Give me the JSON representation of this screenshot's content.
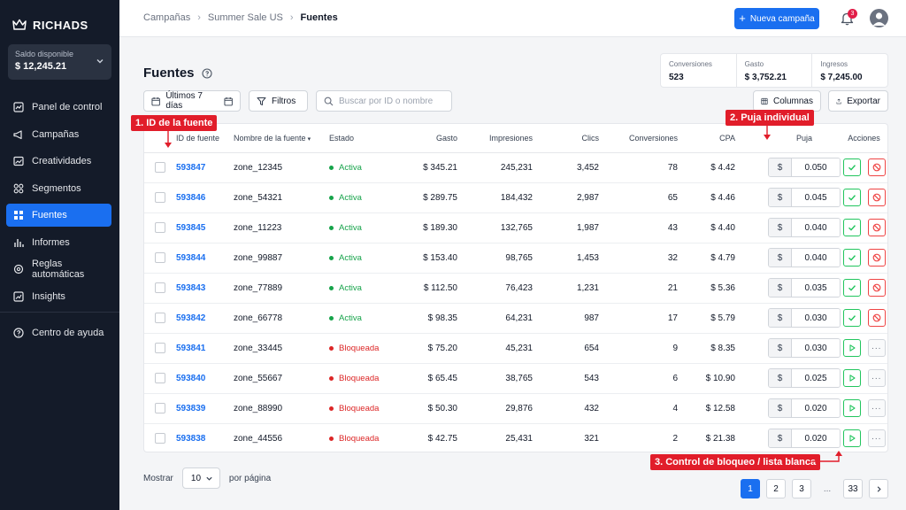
{
  "brand": {
    "name": "RICHADS"
  },
  "balance": {
    "label": "Saldo disponible",
    "value": "$ 12,245.21"
  },
  "sidebar": {
    "items": [
      {
        "label": "Panel de control",
        "icon": "dashboard-icon"
      },
      {
        "label": "Campañas",
        "icon": "megaphone-icon"
      },
      {
        "label": "Creatividades",
        "icon": "image-icon"
      },
      {
        "label": "Segmentos",
        "icon": "grid-icon"
      },
      {
        "label": "Fuentes",
        "icon": "sources-icon",
        "active": true
      },
      {
        "label": "Informes",
        "icon": "bar-chart-icon"
      },
      {
        "label": "Reglas automáticas",
        "icon": "gear-icon"
      },
      {
        "label": "Insights",
        "icon": "chart-up-icon"
      }
    ],
    "help": {
      "label": "Centro de ayuda",
      "icon": "help-circle-icon"
    }
  },
  "breadcrumb": {
    "items": [
      "Campañas",
      "Summer Sale US",
      "Fuentes"
    ]
  },
  "header": {
    "new_campaign": "Nueva campaña",
    "notifications_count": "3"
  },
  "page": {
    "title": "Fuentes"
  },
  "stats": [
    {
      "label": "Conversiones",
      "value": "523"
    },
    {
      "label": "Gasto",
      "value": "$ 3,752.21"
    },
    {
      "label": "Ingresos",
      "value": "$ 7,245.00"
    }
  ],
  "toolbar": {
    "date_range": "Últimos 7 días",
    "filters": "Filtros",
    "search_placeholder": "Buscar por ID o nombre",
    "columns": "Columnas",
    "export": "Exportar"
  },
  "table": {
    "headers": {
      "id": "ID de fuente",
      "name": "Nombre de la fuente",
      "state": "Estado",
      "spend": "Gasto",
      "impressions": "Impresiones",
      "clicks": "Clics",
      "conversions": "Conversiones",
      "cpa": "CPA",
      "bid": "Puja",
      "actions": "Acciones"
    },
    "currency": "$",
    "rows": [
      {
        "id": "593847",
        "name": "zone_12345",
        "state": "Activa",
        "spend": "$ 345.21",
        "impressions": "245,231",
        "clicks": "3,452",
        "conversions": "78",
        "cpa": "$ 4.42",
        "bid": "0.050"
      },
      {
        "id": "593846",
        "name": "zone_54321",
        "state": "Activa",
        "spend": "$ 289.75",
        "impressions": "184,432",
        "clicks": "2,987",
        "conversions": "65",
        "cpa": "$ 4.46",
        "bid": "0.045"
      },
      {
        "id": "593845",
        "name": "zone_11223",
        "state": "Activa",
        "spend": "$ 189.30",
        "impressions": "132,765",
        "clicks": "1,987",
        "conversions": "43",
        "cpa": "$ 4.40",
        "bid": "0.040"
      },
      {
        "id": "593844",
        "name": "zone_99887",
        "state": "Activa",
        "spend": "$ 153.40",
        "impressions": "98,765",
        "clicks": "1,453",
        "conversions": "32",
        "cpa": "$ 4.79",
        "bid": "0.040"
      },
      {
        "id": "593843",
        "name": "zone_77889",
        "state": "Activa",
        "spend": "$ 112.50",
        "impressions": "76,423",
        "clicks": "1,231",
        "conversions": "21",
        "cpa": "$ 5.36",
        "bid": "0.035"
      },
      {
        "id": "593842",
        "name": "zone_66778",
        "state": "Activa",
        "spend": "$ 98.35",
        "impressions": "64,231",
        "clicks": "987",
        "conversions": "17",
        "cpa": "$ 5.79",
        "bid": "0.030"
      },
      {
        "id": "593841",
        "name": "zone_33445",
        "state": "Bloqueada",
        "spend": "$ 75.20",
        "impressions": "45,231",
        "clicks": "654",
        "conversions": "9",
        "cpa": "$ 8.35",
        "bid": "0.030"
      },
      {
        "id": "593840",
        "name": "zone_55667",
        "state": "Bloqueada",
        "spend": "$ 65.45",
        "impressions": "38,765",
        "clicks": "543",
        "conversions": "6",
        "cpa": "$ 10.90",
        "bid": "0.025"
      },
      {
        "id": "593839",
        "name": "zone_88990",
        "state": "Bloqueada",
        "spend": "$ 50.30",
        "impressions": "29,876",
        "clicks": "432",
        "conversions": "4",
        "cpa": "$ 12.58",
        "bid": "0.020"
      },
      {
        "id": "593838",
        "name": "zone_44556",
        "state": "Bloqueada",
        "spend": "$ 42.75",
        "impressions": "25,431",
        "clicks": "321",
        "conversions": "2",
        "cpa": "$ 21.38",
        "bid": "0.020"
      }
    ]
  },
  "annotations": {
    "a1": "1. ID de la fuente",
    "a2": "2. Puja individual",
    "a3": "3. Control de bloqueo / lista blanca"
  },
  "footer": {
    "show_label": "Mostrar",
    "per_page_value": "10",
    "per_page_suffix": "por página",
    "pages": [
      "1",
      "2",
      "3",
      "...",
      "33"
    ]
  },
  "colors": {
    "accent": "#1a6ff0",
    "sidebar": "#141b29",
    "active": "#16a34a",
    "blocked": "#dc2626",
    "annotation": "#e11d2a"
  }
}
